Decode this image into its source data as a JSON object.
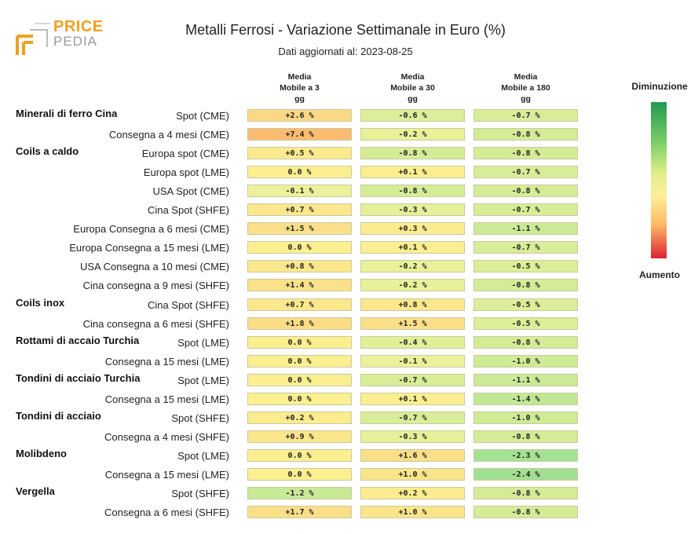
{
  "logo": {
    "price": "PRICE",
    "pedia": "PEDIA"
  },
  "chart_data": {
    "type": "table",
    "title": "Metalli Ferrosi - Variazione Settimanale in Euro (%)",
    "subtitle": "Dati aggiornati al: 2023-08-25",
    "columns": [
      [
        "Media",
        "Mobile a 3",
        "gg"
      ],
      [
        "Media",
        "Mobile a 30",
        "gg"
      ],
      [
        "Media",
        "Mobile a 180",
        "gg"
      ]
    ],
    "legend": {
      "top": "Diminuzione",
      "bottom": "Aumento",
      "colors": [
        "#229955",
        "#77cc66",
        "#ddee88",
        "#ffee99",
        "#ffbb66",
        "#dd2233"
      ]
    },
    "rows": [
      {
        "group": "Minerali di ferro Cina",
        "label": "Spot (CME)",
        "values": [
          2.6,
          -0.6,
          -0.7
        ],
        "text": [
          "+2.6 %",
          "-0.6 %",
          "-0.7 %"
        ]
      },
      {
        "group": "",
        "label": "Consegna a 4 mesi (CME)",
        "values": [
          7.4,
          -0.2,
          -0.8
        ],
        "text": [
          "+7.4 %",
          "-0.2 %",
          "-0.8 %"
        ]
      },
      {
        "group": "Coils a caldo",
        "label": "Europa spot (CME)",
        "values": [
          0.5,
          -0.8,
          -0.8
        ],
        "text": [
          "+0.5 %",
          "-0.8 %",
          "-0.8 %"
        ]
      },
      {
        "group": "",
        "label": "Europa spot (LME)",
        "values": [
          0.0,
          0.1,
          -0.7
        ],
        "text": [
          "0.0 %",
          "+0.1 %",
          "-0.7 %"
        ]
      },
      {
        "group": "",
        "label": "USA Spot (CME)",
        "values": [
          -0.1,
          -0.8,
          -0.8
        ],
        "text": [
          "-0.1 %",
          "-0.8 %",
          "-0.8 %"
        ]
      },
      {
        "group": "",
        "label": "Cina Spot (SHFE)",
        "values": [
          0.7,
          -0.3,
          -0.7
        ],
        "text": [
          "+0.7 %",
          "-0.3 %",
          "-0.7 %"
        ]
      },
      {
        "group": "",
        "label": "Europa Consegna a 6 mesi (CME)",
        "values": [
          1.5,
          0.3,
          -1.1
        ],
        "text": [
          "+1.5 %",
          "+0.3 %",
          "-1.1 %"
        ]
      },
      {
        "group": "",
        "label": "Europa Consegna a 15 mesi (LME)",
        "values": [
          0.0,
          0.1,
          -0.7
        ],
        "text": [
          "0.0 %",
          "+0.1 %",
          "-0.7 %"
        ]
      },
      {
        "group": "",
        "label": "USA Consegna a 10 mesi (CME)",
        "values": [
          0.8,
          -0.2,
          -0.5
        ],
        "text": [
          "+0.8 %",
          "-0.2 %",
          "-0.5 %"
        ]
      },
      {
        "group": "",
        "label": "Cina consegna a 9 mesi (SHFE)",
        "values": [
          1.4,
          -0.2,
          -0.8
        ],
        "text": [
          "+1.4 %",
          "-0.2 %",
          "-0.8 %"
        ]
      },
      {
        "group": "Coils inox",
        "label": "Cina Spot (SHFE)",
        "values": [
          0.7,
          0.8,
          -0.5
        ],
        "text": [
          "+0.7 %",
          "+0.8 %",
          "-0.5 %"
        ]
      },
      {
        "group": "",
        "label": "Cina consegna a 6 mesi (SHFE)",
        "values": [
          1.8,
          1.5,
          -0.5
        ],
        "text": [
          "+1.8 %",
          "+1.5 %",
          "-0.5 %"
        ]
      },
      {
        "group": "Rottami di accaio Turchia",
        "label": "Spot (LME)",
        "values": [
          0.0,
          -0.4,
          -0.8
        ],
        "text": [
          "0.0 %",
          "-0.4 %",
          "-0.8 %"
        ]
      },
      {
        "group": "",
        "label": "Consegna a 15 mesi (LME)",
        "values": [
          0.0,
          -0.1,
          -1.0
        ],
        "text": [
          "0.0 %",
          "-0.1 %",
          "-1.0 %"
        ]
      },
      {
        "group": "Tondini di acciaio Turchia",
        "label": "Spot (LME)",
        "values": [
          0.0,
          -0.7,
          -1.1
        ],
        "text": [
          "0.0 %",
          "-0.7 %",
          "-1.1 %"
        ]
      },
      {
        "group": "",
        "label": "Consegna a 15 mesi (LME)",
        "values": [
          0.0,
          0.1,
          -1.4
        ],
        "text": [
          "0.0 %",
          "+0.1 %",
          "-1.4 %"
        ]
      },
      {
        "group": "Tondini di acciaio",
        "label": "Spot (SHFE)",
        "values": [
          0.2,
          -0.7,
          -1.0
        ],
        "text": [
          "+0.2 %",
          "-0.7 %",
          "-1.0 %"
        ]
      },
      {
        "group": "",
        "label": "Consegna a 4 mesi (SHFE)",
        "values": [
          0.9,
          -0.3,
          -0.8
        ],
        "text": [
          "+0.9 %",
          "-0.3 %",
          "-0.8 %"
        ]
      },
      {
        "group": "Molibdeno",
        "label": "Spot (LME)",
        "values": [
          0.0,
          1.6,
          -2.3
        ],
        "text": [
          "0.0 %",
          "+1.6 %",
          "-2.3 %"
        ]
      },
      {
        "group": "",
        "label": "Consegna a 15 mesi (LME)",
        "values": [
          0.0,
          1.0,
          -2.4
        ],
        "text": [
          "0.0 %",
          "+1.0 %",
          "-2.4 %"
        ]
      },
      {
        "group": "Vergella",
        "label": "Spot (SHFE)",
        "values": [
          -1.2,
          0.2,
          -0.8
        ],
        "text": [
          "-1.2 %",
          "+0.2 %",
          "-0.8 %"
        ]
      },
      {
        "group": "",
        "label": "Consegna a 6 mesi (SHFE)",
        "values": [
          1.7,
          1.0,
          -0.8
        ],
        "text": [
          "+1.7 %",
          "+1.0 %",
          "-0.8 %"
        ]
      }
    ]
  }
}
